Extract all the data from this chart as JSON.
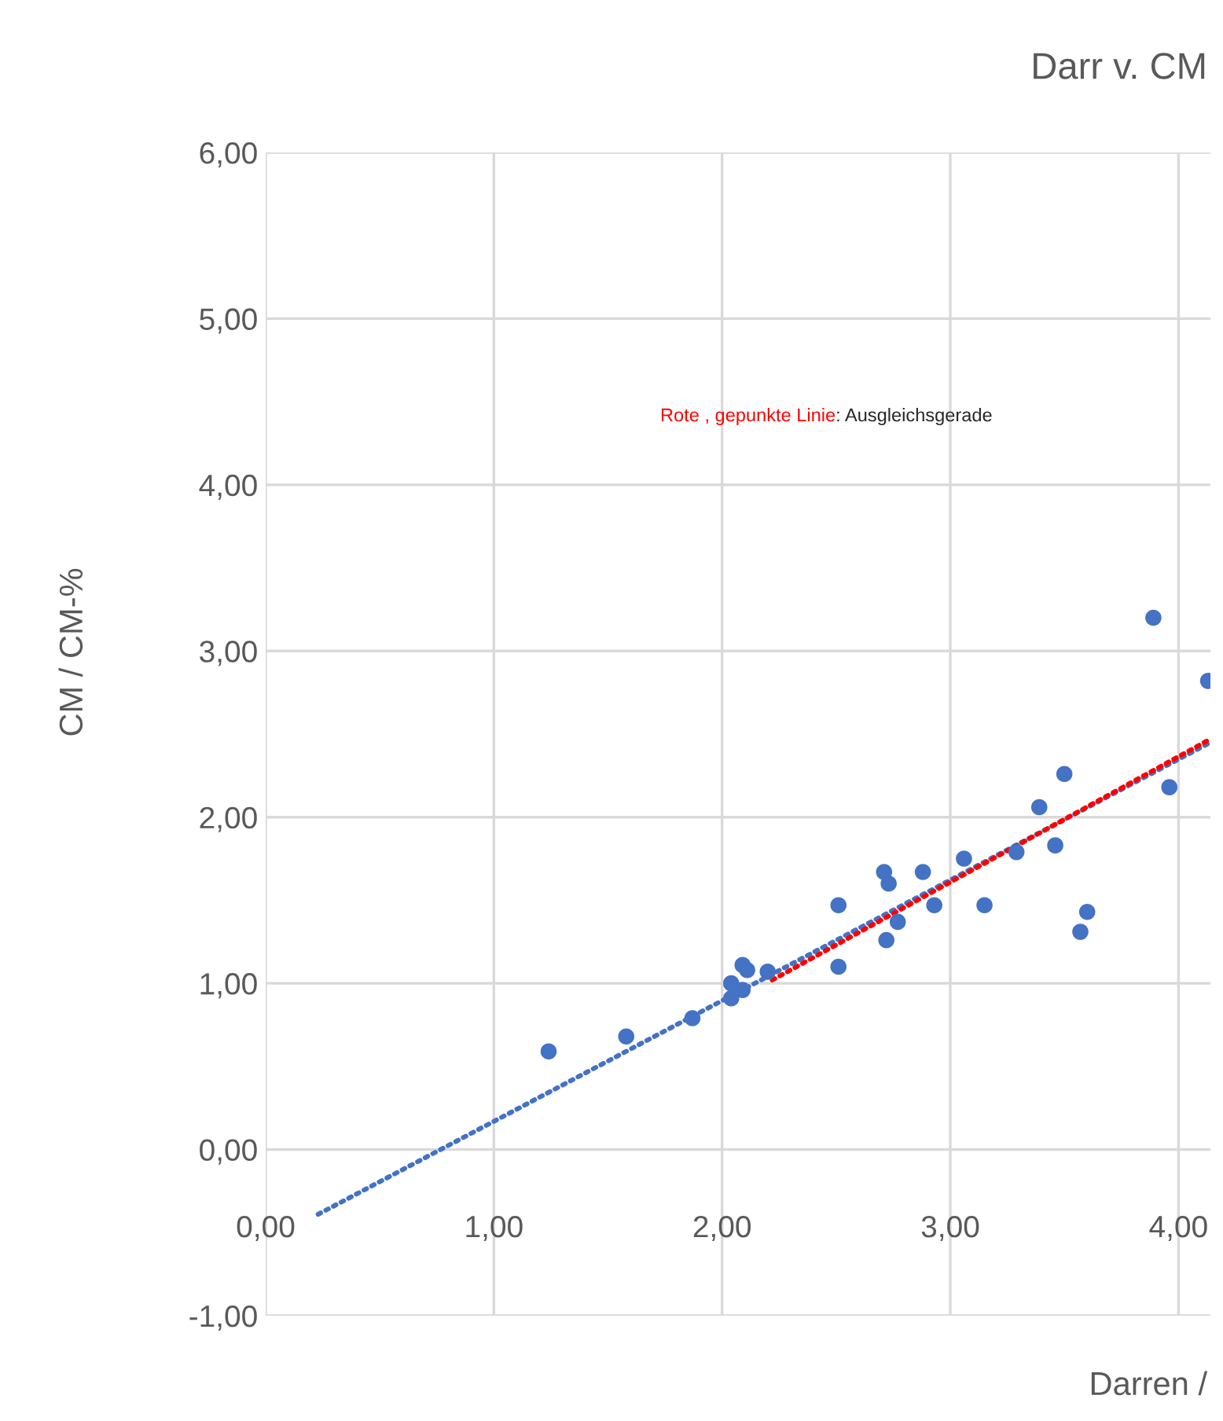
{
  "chart_data": {
    "type": "scatter",
    "title": "Darr v. CM",
    "xlabel": "Darren /",
    "ylabel": "CM / CM-%",
    "annotations": [
      "Rote , gepunkte Linie",
      ": Ausgleichsgerade"
    ],
    "series": [
      {
        "color": "#4472c4",
        "marker": "circle",
        "x": [
          1.24,
          1.58,
          1.87,
          2.04,
          2.04,
          2.09,
          2.09,
          2.11,
          2.2,
          2.51,
          2.51,
          2.71,
          2.73,
          2.72,
          2.77,
          2.88,
          2.93,
          3.06,
          3.15,
          3.29,
          3.39,
          3.46,
          3.5,
          3.57,
          3.6,
          3.89,
          3.96,
          4.13
        ],
        "values": [
          0.59,
          0.68,
          0.79,
          1.0,
          0.91,
          0.96,
          1.11,
          1.08,
          1.07,
          1.47,
          1.1,
          1.67,
          1.6,
          1.26,
          1.37,
          1.67,
          1.47,
          1.75,
          1.47,
          1.79,
          2.06,
          1.83,
          2.26,
          1.31,
          1.43,
          3.2,
          2.18,
          2.82
        ]
      },
      {
        "type": "line",
        "color": "#4472c4",
        "line_style": "dotted",
        "x": [
          0.23,
          4.14
        ],
        "values": [
          -0.39,
          2.45
        ]
      },
      {
        "type": "line",
        "color": "#ff0000",
        "line_style": "dotted",
        "x": [
          2.22,
          4.14
        ],
        "values": [
          1.02,
          2.47
        ]
      }
    ],
    "xlim": [
      0,
      4.14
    ],
    "ylim": [
      -1,
      6
    ],
    "xticks": [
      {
        "value": 0,
        "label": "0,00"
      },
      {
        "value": 1,
        "label": "1,00"
      },
      {
        "value": 2,
        "label": "2,00"
      },
      {
        "value": 3,
        "label": "3,00"
      },
      {
        "value": 4,
        "label": "4,00"
      }
    ],
    "yticks": [
      {
        "value": -1,
        "label": "-1,00"
      },
      {
        "value": 0,
        "label": "0,00"
      },
      {
        "value": 1,
        "label": "1,00"
      },
      {
        "value": 2,
        "label": "2,00"
      },
      {
        "value": 3,
        "label": "3,00"
      },
      {
        "value": 4,
        "label": "4,00"
      },
      {
        "value": 5,
        "label": "5,00"
      },
      {
        "value": 6,
        "label": "6,00"
      }
    ],
    "grid": true,
    "legend": false
  }
}
